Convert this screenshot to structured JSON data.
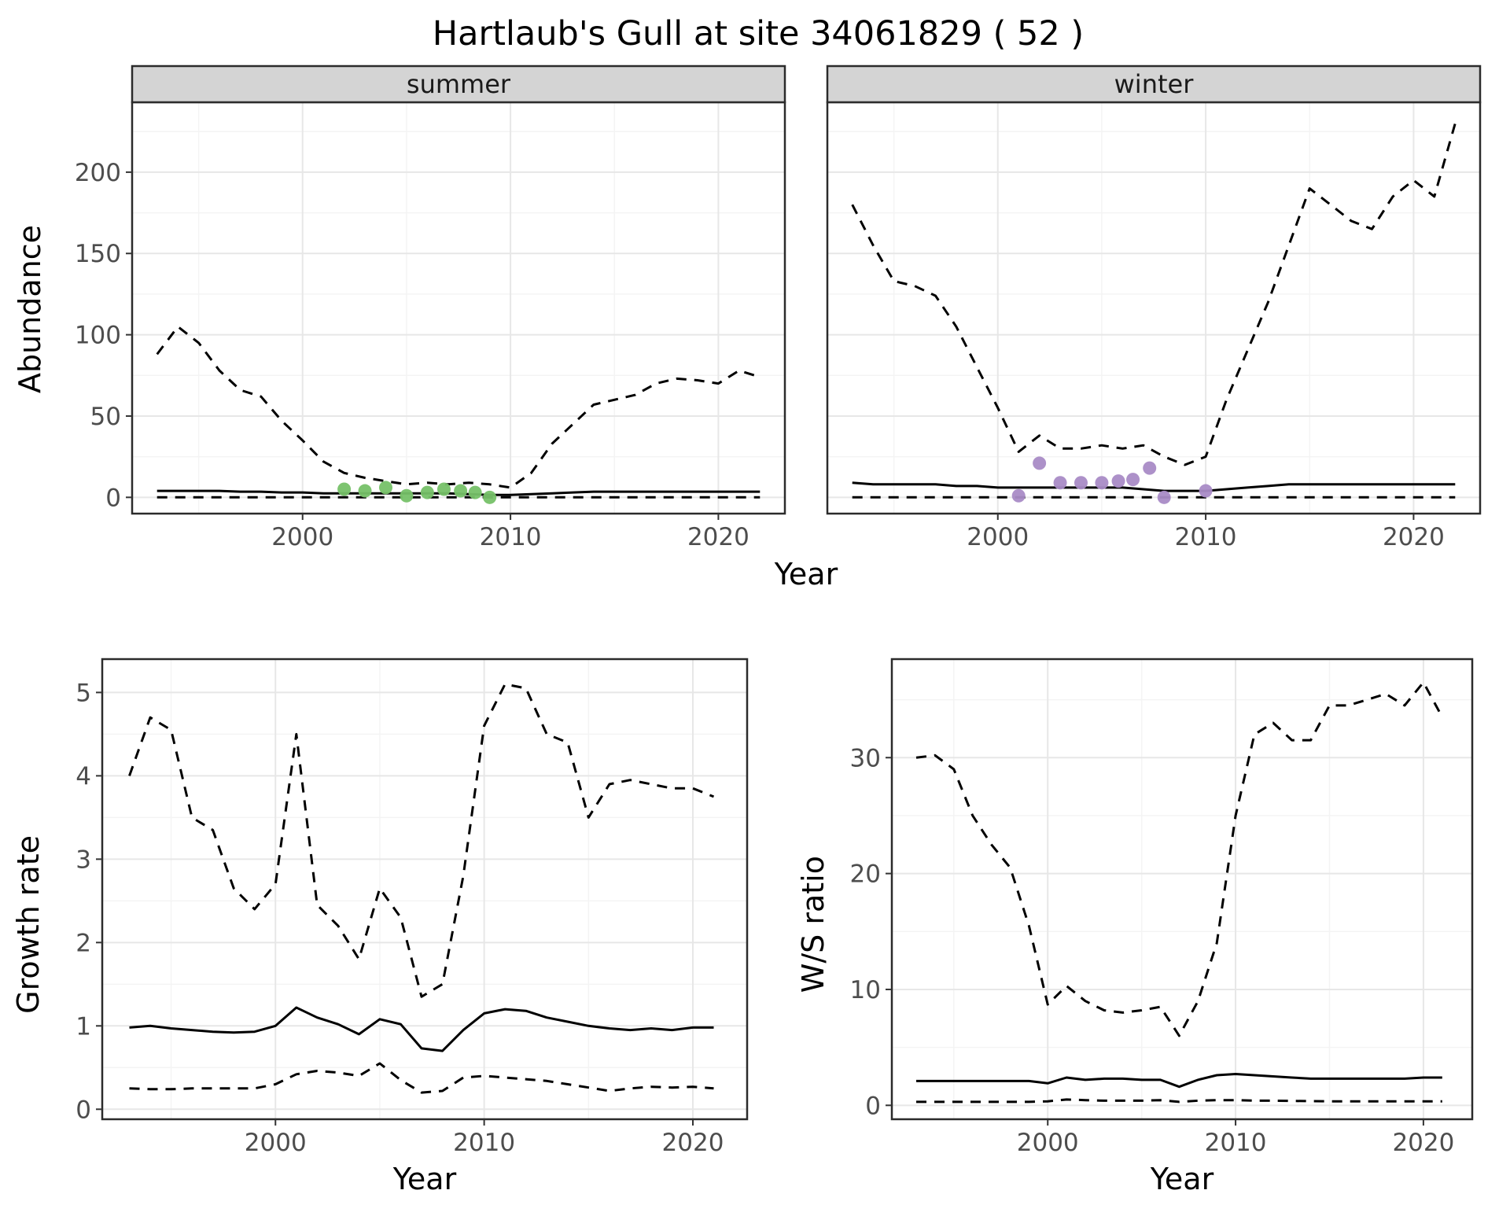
{
  "title": "Hartlaub's Gull at site 34061829 ( 52 )",
  "axis_labels": {
    "abundance": "Abundance",
    "year": "Year",
    "growth_rate": "Growth rate",
    "ws_ratio": "W/S ratio"
  },
  "facets": {
    "summer": "summer",
    "winter": "winter"
  },
  "colors": {
    "line": "#000000",
    "summer_points": "#76c168",
    "winter_points": "#a98bc6",
    "strip_bg": "#d4d4d4",
    "grid_major": "#e7e7e7",
    "grid_minor": "#f4f4f4",
    "panel_border": "#2b2b2b",
    "tick_text": "#4d4d4d"
  },
  "chart_data": [
    {
      "id": "abundance-summer",
      "type": "line",
      "facet_label": "summer",
      "xlabel": "Year",
      "ylabel": "Abundance",
      "xlim": [
        1991.8,
        2023.2
      ],
      "ylim": [
        -10,
        243
      ],
      "xticks": [
        2000,
        2010,
        2020
      ],
      "yticks": [
        0,
        50,
        100,
        150,
        200
      ],
      "xminor": [
        1995,
        2005,
        2015
      ],
      "yminor": [
        25,
        75,
        125,
        175,
        225
      ],
      "show_y_labels": true,
      "x": [
        1993,
        1994,
        1995,
        1996,
        1997,
        1998,
        1999,
        2000,
        2001,
        2002,
        2003,
        2004,
        2005,
        2006,
        2007,
        2008,
        2009,
        2010,
        2011,
        2012,
        2013,
        2014,
        2015,
        2016,
        2017,
        2018,
        2019,
        2020,
        2021,
        2022
      ],
      "series": [
        {
          "name": "upper-ci",
          "style": "dashed",
          "values": [
            88,
            105,
            95,
            78,
            66,
            62,
            47,
            35,
            22,
            15,
            12,
            10,
            8,
            9,
            8,
            9,
            8,
            6,
            15,
            33,
            45,
            57,
            60,
            63,
            70,
            73,
            72,
            70,
            78,
            74
          ]
        },
        {
          "name": "median",
          "style": "solid",
          "values": [
            4,
            4,
            4,
            4,
            3.5,
            3.5,
            3,
            3,
            2.5,
            2.5,
            2.5,
            2.5,
            2.5,
            2.5,
            2.5,
            2,
            1.5,
            1.5,
            2,
            2.5,
            3,
            3.5,
            3.5,
            3.5,
            3.5,
            3.5,
            3.5,
            3.5,
            3.5,
            3.5
          ]
        },
        {
          "name": "lower-ci",
          "style": "dashed",
          "values": [
            0,
            0,
            0,
            0,
            0,
            0,
            0,
            0,
            0,
            0,
            0,
            0,
            0,
            0,
            0,
            0,
            0,
            0,
            0,
            0,
            0,
            0,
            0,
            0,
            0,
            0,
            0,
            0,
            0,
            0
          ]
        },
        {
          "name": "observed-counts",
          "style": "points",
          "color": "#76c168",
          "x": [
            2002,
            2003,
            2004,
            2005,
            2006,
            2006.8,
            2007.6,
            2008.3,
            2009
          ],
          "values": [
            5,
            4,
            6,
            1,
            3,
            5,
            4,
            3,
            0
          ]
        }
      ]
    },
    {
      "id": "abundance-winter",
      "type": "line",
      "facet_label": "winter",
      "xlabel": "Year",
      "ylabel": "Abundance",
      "xlim": [
        1991.8,
        2023.2
      ],
      "ylim": [
        -10,
        243
      ],
      "xticks": [
        2000,
        2010,
        2020
      ],
      "yticks": [
        0,
        50,
        100,
        150,
        200
      ],
      "xminor": [
        1995,
        2005,
        2015
      ],
      "yminor": [
        25,
        75,
        125,
        175,
        225
      ],
      "show_y_labels": false,
      "x": [
        1993,
        1994,
        1995,
        1996,
        1997,
        1998,
        1999,
        2000,
        2001,
        2002,
        2003,
        2004,
        2005,
        2006,
        2007,
        2008,
        2009,
        2010,
        2011,
        2012,
        2013,
        2014,
        2015,
        2016,
        2017,
        2018,
        2019,
        2020,
        2021,
        2022
      ],
      "series": [
        {
          "name": "upper-ci",
          "style": "dashed",
          "values": [
            180,
            155,
            133,
            130,
            124,
            105,
            80,
            55,
            28,
            38,
            30,
            30,
            32,
            30,
            32,
            25,
            20,
            25,
            60,
            90,
            120,
            155,
            190,
            180,
            170,
            165,
            185,
            195,
            185,
            230
          ]
        },
        {
          "name": "median",
          "style": "solid",
          "values": [
            9,
            8,
            8,
            8,
            8,
            7,
            7,
            6,
            6,
            6,
            6,
            6,
            6,
            6,
            5,
            4,
            4,
            4,
            5,
            6,
            7,
            8,
            8,
            8,
            8,
            8,
            8,
            8,
            8,
            8
          ]
        },
        {
          "name": "lower-ci",
          "style": "dashed",
          "values": [
            0,
            0,
            0,
            0,
            0,
            0,
            0,
            0,
            0,
            0,
            0,
            0,
            0,
            0,
            0,
            0,
            0,
            0,
            0,
            0,
            0,
            0,
            0,
            0,
            0,
            0,
            0,
            0,
            0,
            0
          ]
        },
        {
          "name": "observed-counts",
          "style": "points",
          "color": "#a98bc6",
          "x": [
            2001,
            2002,
            2003,
            2004,
            2005,
            2005.8,
            2006.5,
            2007.3,
            2008,
            2010
          ],
          "values": [
            1,
            21,
            9,
            9,
            9,
            10,
            11,
            18,
            0,
            4
          ]
        }
      ]
    },
    {
      "id": "growth-rate",
      "type": "line",
      "facet_label": null,
      "xlabel": "Year",
      "ylabel": "Growth rate",
      "xlim": [
        1991.7,
        2022.6
      ],
      "ylim": [
        -0.12,
        5.4
      ],
      "xticks": [
        2000,
        2010,
        2020
      ],
      "yticks": [
        0,
        1,
        2,
        3,
        4,
        5
      ],
      "xminor": [
        1995,
        2005,
        2015
      ],
      "yminor": [
        0.5,
        1.5,
        2.5,
        3.5,
        4.5
      ],
      "show_y_labels": true,
      "x": [
        1993,
        1994,
        1995,
        1996,
        1997,
        1998,
        1999,
        2000,
        2001,
        2002,
        2003,
        2004,
        2005,
        2006,
        2007,
        2008,
        2009,
        2010,
        2011,
        2012,
        2013,
        2014,
        2015,
        2016,
        2017,
        2018,
        2019,
        2020,
        2021
      ],
      "series": [
        {
          "name": "upper-ci",
          "style": "dashed",
          "values": [
            4.0,
            4.7,
            4.55,
            3.5,
            3.35,
            2.65,
            2.4,
            2.7,
            4.5,
            2.45,
            2.2,
            1.8,
            2.65,
            2.3,
            1.35,
            1.5,
            2.8,
            4.6,
            5.1,
            5.05,
            4.5,
            4.4,
            3.5,
            3.9,
            3.95,
            3.9,
            3.85,
            3.85,
            3.75
          ]
        },
        {
          "name": "median",
          "style": "solid",
          "values": [
            0.98,
            1.0,
            0.97,
            0.95,
            0.93,
            0.92,
            0.93,
            1.0,
            1.22,
            1.1,
            1.02,
            0.9,
            1.08,
            1.02,
            0.73,
            0.7,
            0.95,
            1.15,
            1.2,
            1.18,
            1.1,
            1.05,
            1.0,
            0.97,
            0.95,
            0.97,
            0.95,
            0.98,
            0.98
          ]
        },
        {
          "name": "lower-ci",
          "style": "dashed",
          "values": [
            0.25,
            0.24,
            0.24,
            0.25,
            0.25,
            0.25,
            0.25,
            0.3,
            0.42,
            0.46,
            0.44,
            0.4,
            0.55,
            0.35,
            0.2,
            0.22,
            0.38,
            0.4,
            0.38,
            0.36,
            0.34,
            0.3,
            0.26,
            0.22,
            0.25,
            0.27,
            0.26,
            0.27,
            0.25
          ]
        }
      ]
    },
    {
      "id": "ws-ratio",
      "type": "line",
      "facet_label": null,
      "xlabel": "Year",
      "ylabel": "W/S ratio",
      "xlim": [
        1991.7,
        2022.6
      ],
      "ylim": [
        -1.2,
        38.5
      ],
      "xticks": [
        2000,
        2010,
        2020
      ],
      "yticks": [
        0,
        10,
        20,
        30
      ],
      "xminor": [
        1995,
        2005,
        2015
      ],
      "yminor": [
        5,
        15,
        25,
        35
      ],
      "show_y_labels": true,
      "x": [
        1993,
        1994,
        1995,
        1996,
        1997,
        1998,
        1999,
        2000,
        2001,
        2002,
        2003,
        2004,
        2005,
        2006,
        2007,
        2008,
        2009,
        2010,
        2011,
        2012,
        2013,
        2014,
        2015,
        2016,
        2017,
        2018,
        2019,
        2020,
        2021
      ],
      "series": [
        {
          "name": "upper-ci",
          "style": "dashed",
          "values": [
            30,
            30.2,
            29,
            25,
            22.5,
            20.5,
            15.5,
            8.7,
            10.3,
            9,
            8.2,
            8,
            8.2,
            8.5,
            6,
            9,
            14,
            25,
            32,
            33,
            31.5,
            31.5,
            34.5,
            34.5,
            35,
            35.5,
            34.5,
            36.5,
            33.5
          ]
        },
        {
          "name": "median",
          "style": "solid",
          "values": [
            2.1,
            2.1,
            2.1,
            2.1,
            2.1,
            2.1,
            2.1,
            1.9,
            2.4,
            2.2,
            2.3,
            2.3,
            2.2,
            2.2,
            1.6,
            2.2,
            2.6,
            2.7,
            2.6,
            2.5,
            2.4,
            2.3,
            2.3,
            2.3,
            2.3,
            2.3,
            2.3,
            2.4,
            2.4
          ]
        },
        {
          "name": "lower-ci",
          "style": "dashed",
          "values": [
            0.3,
            0.3,
            0.3,
            0.3,
            0.3,
            0.3,
            0.3,
            0.35,
            0.5,
            0.45,
            0.4,
            0.4,
            0.4,
            0.45,
            0.3,
            0.4,
            0.45,
            0.45,
            0.4,
            0.4,
            0.38,
            0.36,
            0.35,
            0.35,
            0.35,
            0.35,
            0.35,
            0.35,
            0.35
          ]
        }
      ]
    }
  ]
}
